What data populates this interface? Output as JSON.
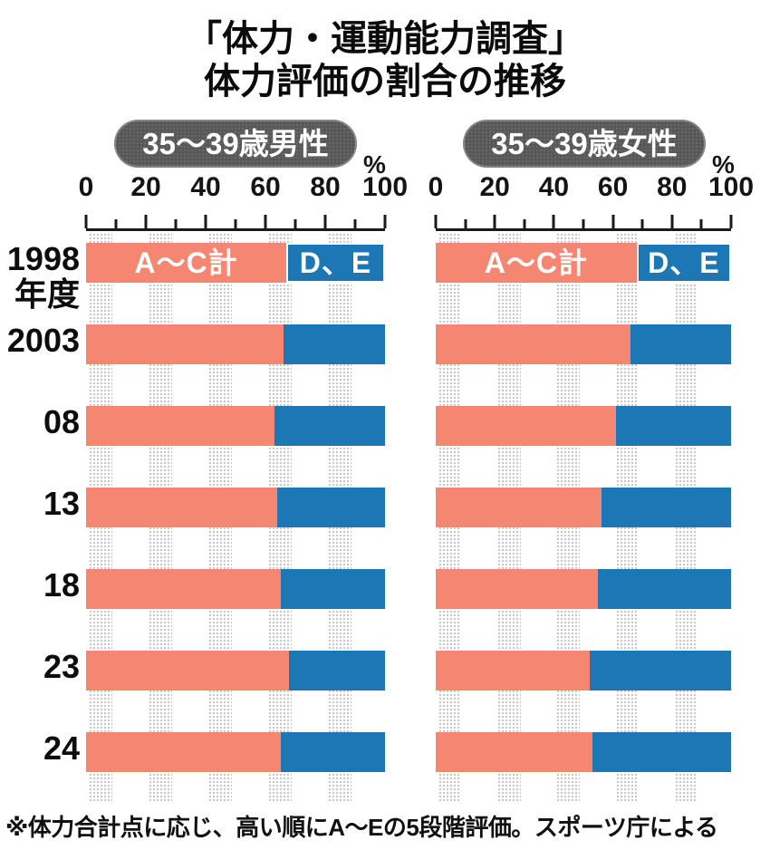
{
  "title": {
    "line1": "「体力・運動能力調査」",
    "line2": "体力評価の割合の推移"
  },
  "group_labels": [
    "35〜39歳男性",
    "35〜39歳女性"
  ],
  "axis": {
    "unit": "%",
    "ticks": [
      "0",
      "20",
      "40",
      "60",
      "80",
      "100"
    ]
  },
  "year_labels": [
    [
      "1998",
      "年度"
    ],
    [
      "2003"
    ],
    [
      "08"
    ],
    [
      "13"
    ],
    [
      "18"
    ],
    [
      "23"
    ],
    [
      "24"
    ]
  ],
  "bar_labels": {
    "left": "A〜C計",
    "right": "D、E"
  },
  "colors": {
    "salmon": "#f48672",
    "blue": "#1d77b4",
    "pill_gray": "#585858",
    "dot_gray": "#c7c7c7",
    "axis_black": "#1a1a1a"
  },
  "footnote": "※体力合計点に応じ、高い順にA〜Eの5段階評価。スポーツ庁による",
  "chart_data": [
    {
      "type": "bar",
      "orientation": "horizontal",
      "stacked": true,
      "title": "35〜39歳男性",
      "categories": [
        "1998年度",
        "2003",
        "08",
        "13",
        "18",
        "23",
        "24"
      ],
      "series": [
        {
          "name": "A〜C計",
          "color": "#f48672",
          "values": [
            67,
            66,
            63,
            64,
            65,
            68,
            65
          ]
        },
        {
          "name": "D、E",
          "color": "#1d77b4",
          "values": [
            33,
            34,
            37,
            36,
            35,
            32,
            35
          ]
        }
      ],
      "xlabel": "%",
      "xlim": [
        0,
        100
      ],
      "x_ticks": [
        0,
        20,
        40,
        60,
        80,
        100
      ],
      "grid": "dotted vertical bands at 0-10,20-30,40-50,60-70,80-90",
      "legend_position": "inside first bar"
    },
    {
      "type": "bar",
      "orientation": "horizontal",
      "stacked": true,
      "title": "35〜39歳女性",
      "categories": [
        "1998年度",
        "2003",
        "08",
        "13",
        "18",
        "23",
        "24"
      ],
      "series": [
        {
          "name": "A〜C計",
          "color": "#f48672",
          "values": [
            68,
            66,
            61,
            56,
            55,
            52,
            53
          ]
        },
        {
          "name": "D、E",
          "color": "#1d77b4",
          "values": [
            32,
            34,
            39,
            44,
            45,
            48,
            47
          ]
        }
      ],
      "xlabel": "%",
      "xlim": [
        0,
        100
      ],
      "x_ticks": [
        0,
        20,
        40,
        60,
        80,
        100
      ],
      "grid": "dotted vertical bands at 0-10,20-30,40-50,60-70,80-90",
      "legend_position": "inside first bar"
    }
  ]
}
